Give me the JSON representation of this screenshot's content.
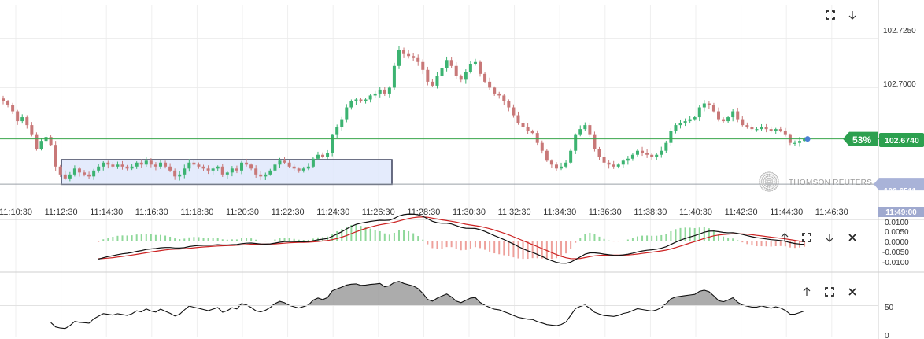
{
  "chart_data": [
    {
      "type": "candlestick",
      "panel": "price",
      "ylim": [
        102.64,
        102.742
      ],
      "yticks": [
        102.725,
        102.7
      ],
      "ytick_labels": [
        "102.7250",
        "102.7000"
      ],
      "current_price": 102.674,
      "current_price_label": "102.6740",
      "percent_label": "53%",
      "reference_price": 102.6511,
      "reference_price_label": "102.6511",
      "watermark": "THOMSON REUTERS",
      "x_time_labels": [
        "11:10:30",
        "11:12:30",
        "11:14:30",
        "11:16:30",
        "11:18:30",
        "11:20:30",
        "11:22:30",
        "11:24:30",
        "11:26:30",
        "11:28:30",
        "11:30:30",
        "11:32:30",
        "11:34:30",
        "11:36:30",
        "11:38:30",
        "11:40:30",
        "11:42:30",
        "11:44:30",
        "11:46:30"
      ],
      "cursor_time_label": "11:49:00",
      "selection": {
        "price_from": 102.651,
        "price_to": 102.6635
      },
      "close": [
        102.693,
        102.691,
        102.688,
        102.683,
        102.685,
        102.681,
        102.676,
        102.669,
        102.673,
        102.675,
        102.671,
        102.66,
        102.656,
        102.654,
        102.656,
        102.659,
        102.657,
        102.656,
        102.655,
        102.658,
        102.66,
        102.662,
        102.661,
        102.66,
        102.661,
        102.66,
        102.659,
        102.66,
        102.662,
        102.661,
        102.663,
        102.661,
        102.66,
        102.662,
        102.66,
        102.658,
        102.655,
        102.656,
        102.659,
        102.662,
        102.661,
        102.66,
        102.659,
        102.658,
        102.659,
        102.66,
        102.656,
        102.657,
        102.659,
        102.658,
        102.662,
        102.661,
        102.659,
        102.656,
        102.655,
        102.656,
        102.658,
        102.661,
        102.663,
        102.662,
        102.66,
        102.659,
        102.658,
        102.659,
        102.66,
        102.664,
        102.666,
        102.665,
        102.667,
        102.676,
        102.68,
        102.684,
        102.69,
        102.693,
        102.694,
        102.693,
        102.694,
        102.696,
        102.697,
        102.699,
        102.697,
        102.7,
        102.711,
        102.719,
        102.717,
        102.716,
        102.715,
        102.713,
        102.709,
        102.703,
        102.701,
        102.706,
        102.71,
        102.714,
        102.711,
        102.706,
        102.704,
        102.708,
        102.712,
        102.713,
        102.707,
        102.703,
        102.7,
        102.697,
        102.696,
        102.693,
        102.69,
        102.686,
        102.682,
        102.68,
        102.678,
        102.677,
        102.672,
        102.668,
        102.663,
        102.661,
        102.659,
        102.66,
        102.662,
        102.668,
        102.676,
        102.679,
        102.681,
        102.676,
        102.669,
        102.665,
        102.662,
        102.661,
        102.66,
        102.661,
        102.663,
        102.664,
        102.666,
        102.668,
        102.667,
        102.666,
        102.665,
        102.666,
        102.668,
        102.672,
        102.678,
        102.681,
        102.682,
        102.683,
        102.684,
        102.685,
        102.69,
        102.692,
        102.691,
        102.688,
        102.684,
        102.683,
        102.685,
        102.688,
        102.684,
        102.681,
        102.68,
        102.679,
        102.679,
        102.68,
        102.679,
        102.678,
        102.679,
        102.678,
        102.676,
        102.672,
        102.672,
        102.673,
        102.674
      ]
    },
    {
      "type": "line",
      "panel": "macd",
      "ylim": [
        -0.0135,
        0.0135
      ],
      "yticks": [
        0.01,
        0.005,
        0,
        -0.005,
        -0.01
      ],
      "ytick_labels": [
        "0.0100",
        "0.0050",
        "0.0000",
        "-0.0050",
        "-0.0100"
      ],
      "series": [
        {
          "role": "macd",
          "color": "#111111"
        },
        {
          "role": "signal",
          "color": "#cc2222"
        },
        {
          "role": "histogram-positive",
          "color": "#7fd08a"
        },
        {
          "role": "histogram-negative",
          "color": "#e6908c"
        }
      ]
    },
    {
      "type": "area",
      "panel": "rsi",
      "ylim": [
        0,
        100
      ],
      "yticks": [
        50,
        0
      ],
      "ytick_labels": [
        "50",
        "0"
      ],
      "threshold": 50,
      "fill_color": "#9e9e9e"
    }
  ],
  "colors": {
    "up": "#3cb371",
    "down": "#c87878",
    "price_line": "#3aa64c",
    "ref_label_bg": "#a9b3d8",
    "cursor_label_bg": "#9fa9cf",
    "selection_fill": "#dfe8fb",
    "selection_stroke": "#3a3f5a"
  },
  "icons": {
    "price_panel": [
      "fullscreen-icon",
      "arrow-down-icon"
    ],
    "macd_panel": [
      "arrow-up-icon",
      "fullscreen-icon",
      "arrow-down-icon",
      "close-icon"
    ],
    "rsi_panel": [
      "arrow-up-icon",
      "fullscreen-icon",
      "close-icon"
    ]
  }
}
